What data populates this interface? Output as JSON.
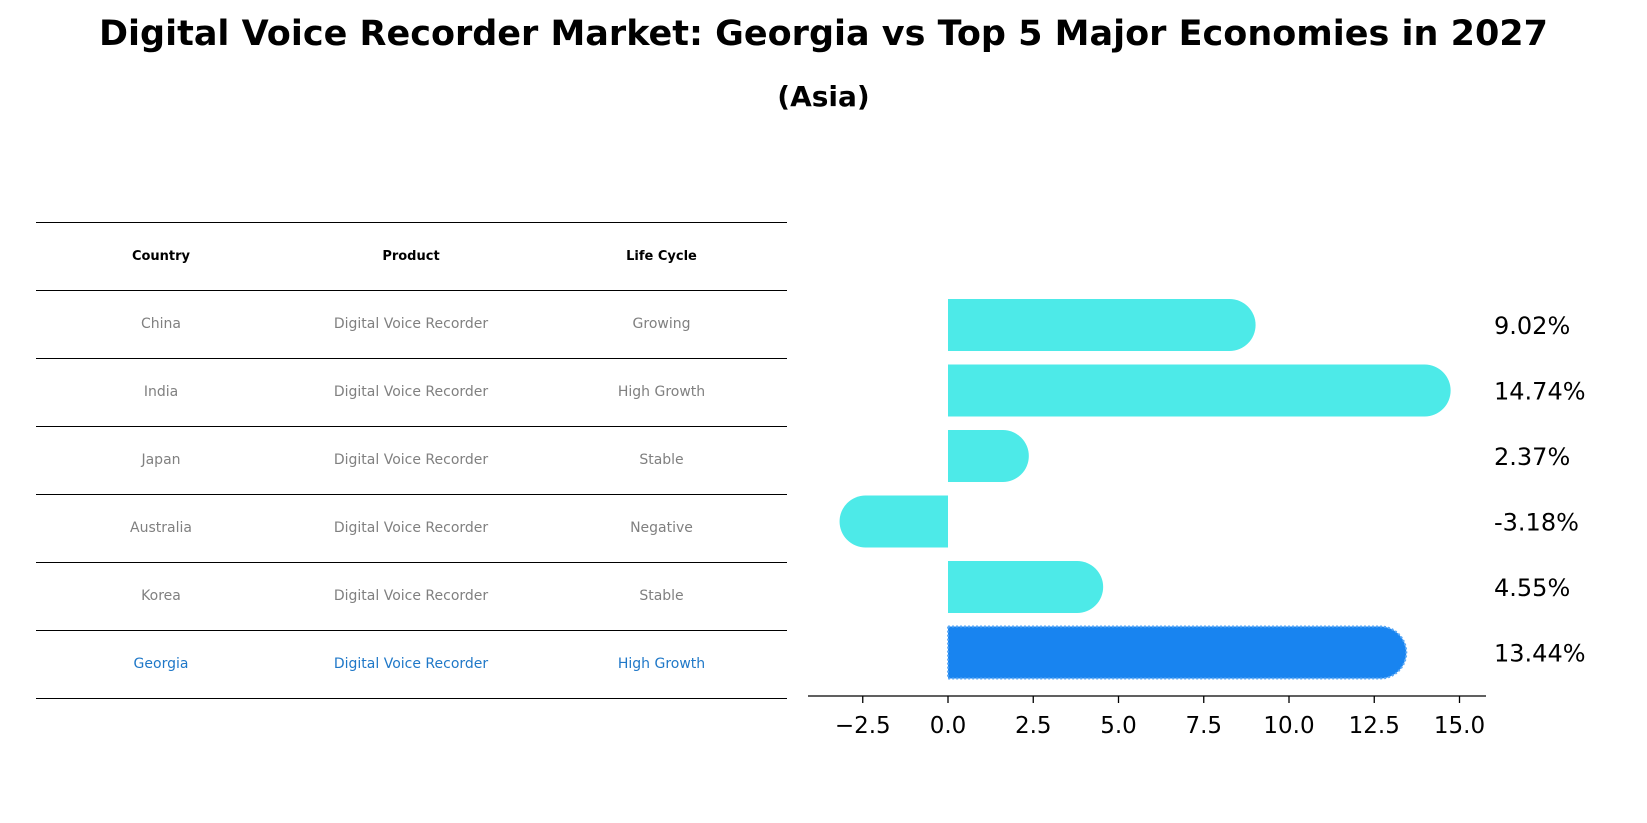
{
  "title": "Digital Voice Recorder Market: Georgia vs Top 5 Major Economies in 2027",
  "subtitle": "(Asia)",
  "table": {
    "headers": [
      "Country",
      "Product",
      "Life Cycle"
    ],
    "rows": [
      [
        "China",
        "Digital Voice Recorder",
        "Growing"
      ],
      [
        "India",
        "Digital Voice Recorder",
        "High Growth"
      ],
      [
        "Japan",
        "Digital Voice Recorder",
        "Stable"
      ],
      [
        "Australia",
        "Digital Voice Recorder",
        "Negative"
      ],
      [
        "Korea",
        "Digital Voice Recorder",
        "Stable"
      ],
      [
        "Georgia",
        "Digital Voice Recorder",
        "High Growth"
      ]
    ]
  },
  "colors": {
    "bar": "#4deae8",
    "highlight_bar": "#1884f0",
    "highlight_text": "#1f78c8",
    "table_text": "#808080"
  },
  "chart_data": {
    "type": "bar",
    "orientation": "horizontal",
    "categories": [
      "China",
      "India",
      "Japan",
      "Australia",
      "Korea",
      "Georgia"
    ],
    "values": [
      9.02,
      14.74,
      2.37,
      -3.18,
      4.55,
      13.44
    ],
    "value_labels": [
      "9.02%",
      "14.74%",
      "2.37%",
      "-3.18%",
      "4.55%",
      "13.44%"
    ],
    "highlight": "Georgia",
    "xlim": [
      -4.1,
      15.7
    ],
    "xticks": [
      -2.5,
      0.0,
      2.5,
      5.0,
      7.5,
      10.0,
      12.5,
      15.0
    ],
    "xtick_labels": [
      "−2.5",
      "0.0",
      "2.5",
      "5.0",
      "7.5",
      "10.0",
      "12.5",
      "15.0"
    ],
    "grid": false,
    "legend": "none"
  }
}
